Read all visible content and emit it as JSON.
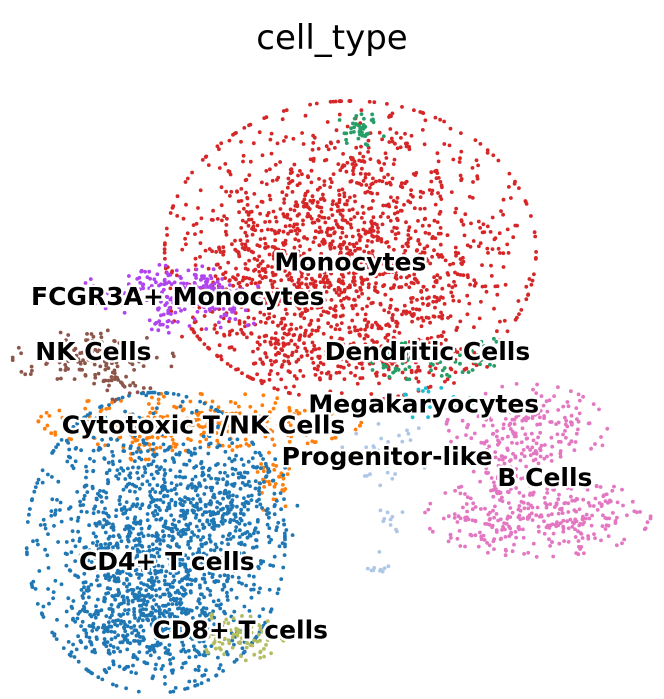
{
  "chart_data": {
    "type": "scatter",
    "title": "cell_type",
    "xlabel": "",
    "ylabel": "",
    "grid": false,
    "axes_visible": false,
    "legend": "on data",
    "xlim": [
      -7.5,
      9.5
    ],
    "ylim": [
      -8.5,
      14.5
    ],
    "series": [
      {
        "name": "Monocytes",
        "color": "#d62728",
        "label_at": [
          1.5,
          7.2
        ],
        "clusters": [
          {
            "center": [
              1.5,
              7.6
            ],
            "spread": [
              2.3,
              2.6
            ],
            "n": 1500
          },
          {
            "center": [
              -0.8,
              6.0
            ],
            "spread": [
              1.2,
              1.5
            ],
            "n": 220
          },
          {
            "center": [
              1.8,
              3.5
            ],
            "spread": [
              1.6,
              0.6
            ],
            "n": 160
          }
        ]
      },
      {
        "name": "FCGR3A+ Monocytes",
        "color": "#b044ee",
        "label_at": [
          -3.2,
          5.9
        ],
        "clusters": [
          {
            "center": [
              -3.4,
              6.1
            ],
            "spread": [
              1.1,
              0.45
            ],
            "n": 180
          },
          {
            "center": [
              -2.2,
              5.4
            ],
            "spread": [
              0.7,
              0.35
            ],
            "n": 60
          },
          {
            "center": [
              -3.7,
              4.8
            ],
            "spread": [
              0.2,
              0.2
            ],
            "n": 12
          }
        ]
      },
      {
        "name": "NK Cells",
        "color": "#8c564b",
        "label_at": [
          -5.5,
          3.8
        ],
        "clusters": [
          {
            "center": [
              -5.5,
              3.5
            ],
            "spread": [
              1.0,
              0.5
            ],
            "n": 120
          },
          {
            "center": [
              -4.6,
              2.5
            ],
            "spread": [
              0.4,
              0.3
            ],
            "n": 25
          }
        ]
      },
      {
        "name": "Dendritic Cells",
        "color": "#279e68",
        "label_at": [
          3.6,
          3.8
        ],
        "clusters": [
          {
            "center": [
              3.7,
              3.4
            ],
            "spread": [
              0.8,
              0.35
            ],
            "n": 70
          },
          {
            "center": [
              5.1,
              3.9
            ],
            "spread": [
              0.25,
              0.2
            ],
            "n": 15
          }
        ]
      },
      {
        "name": "Megakaryocytes",
        "color": "#17becf",
        "label_at": [
          3.5,
          1.8
        ],
        "clusters": [
          {
            "center": [
              3.3,
              1.8
            ],
            "spread": [
              0.7,
              0.3
            ],
            "n": 30
          }
        ]
      },
      {
        "name": "Cytotoxic T/NK Cells",
        "color": "#ff7f0e",
        "label_at": [
          -2.5,
          1.0
        ],
        "clusters": [
          {
            "center": [
              -2.6,
              1.1
            ],
            "spread": [
              2.0,
              0.5
            ],
            "n": 300
          },
          {
            "center": [
              -4.1,
              0.4
            ],
            "spread": [
              0.4,
              0.4
            ],
            "n": 40
          },
          {
            "center": [
              -0.6,
              -1.1
            ],
            "spread": [
              0.25,
              0.6
            ],
            "n": 35
          }
        ]
      },
      {
        "name": "Progenitor-like",
        "color": "#aec7e8",
        "label_at": [
          2.5,
          -0.2
        ],
        "clusters": [
          {
            "center": [
              2.2,
              0.0
            ],
            "spread": [
              0.7,
              0.6
            ],
            "n": 35
          },
          {
            "center": [
              2.6,
              -2.5
            ],
            "spread": [
              0.15,
              0.3
            ],
            "n": 10
          },
          {
            "center": [
              2.3,
              -4.4
            ],
            "spread": [
              0.15,
              0.25
            ],
            "n": 10
          }
        ]
      },
      {
        "name": "B Cells",
        "color": "#e377c2",
        "label_at": [
          6.8,
          -1.0
        ],
        "clusters": [
          {
            "center": [
              6.3,
              0.8
            ],
            "spread": [
              1.0,
              0.8
            ],
            "n": 200
          },
          {
            "center": [
              6.6,
              -2.5
            ],
            "spread": [
              1.4,
              0.7
            ],
            "n": 320
          },
          {
            "center": [
              5.8,
              -0.8
            ],
            "spread": [
              0.5,
              0.5
            ],
            "n": 60
          }
        ]
      },
      {
        "name": "CD4+ T cells",
        "color": "#1f77b4",
        "label_at": [
          -3.5,
          -4.2
        ],
        "clusters": [
          {
            "center": [
              -3.8,
              -3.5
            ],
            "spread": [
              1.6,
              2.6
            ],
            "n": 1300
          },
          {
            "center": [
              -1.7,
              -2.2
            ],
            "spread": [
              0.8,
              1.2
            ],
            "n": 220
          },
          {
            "center": [
              -4.1,
              -6.5
            ],
            "spread": [
              1.0,
              0.9
            ],
            "n": 300
          }
        ]
      },
      {
        "name": "CD8+ T cells",
        "color": "#b5bd61",
        "label_at": [
          -1.5,
          -6.8
        ],
        "clusters": [
          {
            "center": [
              -1.5,
              -7.0
            ],
            "spread": [
              0.55,
              0.45
            ],
            "n": 90
          }
        ]
      },
      {
        "name": "",
        "color": "#279e68",
        "label_at": null,
        "clusters": [
          {
            "center": [
              1.8,
              12.2
            ],
            "spread": [
              0.35,
              0.3
            ],
            "n": 40
          }
        ]
      }
    ]
  }
}
